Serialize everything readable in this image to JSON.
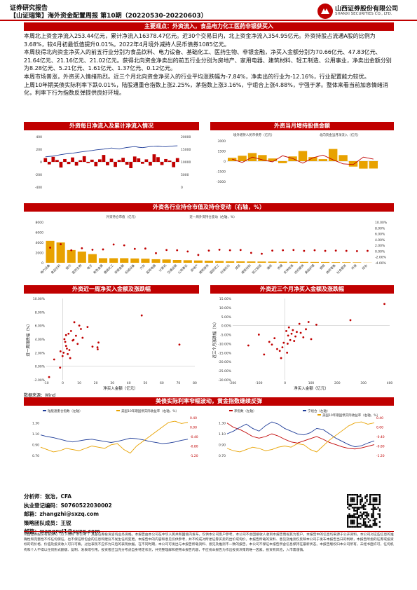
{
  "header": {
    "doc_type": "证券研究报告",
    "title": "【山证瑞策】海外资金配置周报 第10期（20220530-20220603）",
    "company_cn": "山西证券股份有限公司",
    "company_en": "SHANXI SECURITIES CO., LTD."
  },
  "sections": {
    "core_view": "主要观点：外资流入，食品电力化工医药非银获买入",
    "chart1_title": "外资每日净流入及累计净流入情况",
    "chart2_title": "外资当月增持股债金额",
    "chart3_title": "外资各行业持仓市值及持仓变动（右轴，%）",
    "chart4_title": "外资近一周净买入金额及涨跌幅",
    "chart5_title": "外资近三个月净买入金额及涨跌幅",
    "chart6_title": "美债实际利率窄幅波动，黄金指数继续反弹"
  },
  "paragraphs": [
    "本周北上资金净流入253.44亿元，累计净流入16378.47亿元。近30个交易日内，北上资金净流入354.95亿元。外资持股占流通A股的比例为3.68%，较4月初最低值提升0.01%。2022年4月境外减持人民币债券1085亿元。",
    "本周获得北向资金净买入的前五行业分别为食品饮料、电力设备、基础化工、医药生物、非银金融，净买入金额分别为70.66亿元、47.83亿元、21.64亿元、21.16亿元、21.02亿元。获得北向资金净卖出的前五行业分别为房地产、家用电器、建筑材料、轻工制造、公用事业，净卖出金额分别为8.28亿元、5.21亿元、1.61亿元、1.37亿元、0.12亿元。",
    "本周市场普涨，外资买入情绪热烈。近三个月北向资金净买入的行业平均涨跌幅为-7.84%，净卖出的行业为-12.16%，行业配置能力较优。",
    "上周10年期美债实际利率下跌0.01%，陆股通重仓指数上涨2.25%，茅指数上涨3.16%，宁组合上涨4.88%，宁强于茅。整体来看当前加息情绪消化，利率下行为指数反弹提供良好环境。"
  ],
  "chart_data": [
    {
      "type": "bar",
      "title": "外资每日净流入及累计净流入情况",
      "series": [
        {
          "name": "",
          "values": [
            60,
            -40,
            80,
            30,
            -90,
            45,
            -35,
            70,
            -60,
            25,
            90,
            -20,
            35,
            -70,
            40,
            110,
            -55,
            50,
            -80,
            30,
            65,
            -45,
            -100,
            85,
            55,
            -30,
            40,
            -60,
            120,
            75,
            -50,
            45,
            20,
            -85,
            60
          ]
        },
        {
          "name": "",
          "values": [
            12000,
            12150,
            12300,
            12600,
            12850,
            13100,
            13300,
            13450,
            13650,
            13900,
            14100,
            14300,
            14500,
            14750,
            14900,
            15050,
            15250,
            15500,
            15300,
            15100,
            15450,
            15700,
            15900,
            16050,
            15800,
            15650,
            15850,
            16100,
            16150,
            16250,
            16050,
            16000,
            16200,
            16300,
            16378
          ]
        }
      ],
      "ylim_left": [
        -400,
        400
      ],
      "ylim_right": [
        0,
        20000
      ]
    },
    {
      "type": "bar",
      "title": "外资当月增持股债金额",
      "series": [
        {
          "name": "境外增持人民币债券（亿元）",
          "values": [
            500,
            800,
            1200,
            900,
            400,
            -300,
            700,
            1500,
            600,
            300,
            1800,
            900,
            -800,
            -1100,
            -1085
          ]
        },
        {
          "name": "北向资金当月净流入（亿元）",
          "values": [
            300,
            -200,
            600,
            200,
            -100,
            800,
            400,
            -300,
            500,
            900,
            200,
            -400,
            -500,
            600,
            300
          ]
        }
      ],
      "ylim": [
        -3000,
        3000
      ]
    },
    {
      "type": "bar",
      "title": "外资各行业持仓市值及持仓变动（右轴，%）",
      "categories": [
        "电力设备",
        "食品饮料",
        "银行",
        "医药生物",
        "电子",
        "有色金属",
        "基础化工",
        "非银金融",
        "机械设备",
        "汽车",
        "家用电器",
        "计算机",
        "交通运输",
        "公用事业",
        "房地产",
        "建筑装饰",
        "国防军工",
        "石油石化",
        "煤炭",
        "建筑材料",
        "轻工制造",
        "通信",
        "传媒",
        "农林牧渔",
        "纺织服饰",
        "美容护理",
        "钢铁",
        "商贸零售",
        "社会服务",
        "环保",
        "综合"
      ],
      "series": [
        {
          "name": "外资持仓市值（亿元）",
          "values": [
            4300,
            4000,
            2500,
            2200,
            1700,
            900,
            900,
            900,
            850,
            800,
            700,
            650,
            550,
            500,
            450,
            400,
            350,
            300,
            280,
            260,
            240,
            230,
            200,
            190,
            170,
            160,
            150,
            120,
            110,
            90,
            30
          ]
        },
        {
          "name": "近一周外资持仓变动（右轴，%）",
          "values": [
            1.2,
            2.4,
            0.3,
            1.0,
            0.5,
            0.6,
            2.3,
            2.0,
            0.8,
            0.9,
            -0.7,
            0.4,
            0.3,
            -0.1,
            -1.3,
            0.2,
            0.5,
            0.3,
            0.4,
            -0.6,
            -0.9,
            0.2,
            0.3,
            0.4,
            0.1,
            0.3,
            0.1,
            0.2,
            0.1,
            0.0,
            0.1
          ]
        }
      ],
      "ylim": [
        0,
        8000
      ],
      "y2lim": [
        -4,
        10
      ]
    },
    {
      "type": "scatter",
      "title": "外资近一周净买入金额及涨跌幅",
      "xlabel": "净买入金额（亿元）",
      "ylabel": "近一周涨跌幅（%）",
      "x": [
        70.66,
        47.83,
        21.64,
        21.16,
        21.02,
        10,
        8,
        6,
        5,
        4,
        3,
        2,
        1,
        0.5,
        -0.12,
        -1.37,
        -1.61,
        -5.21,
        -8.28,
        12,
        15,
        9,
        7,
        3.5,
        2.5,
        1.5,
        18,
        11,
        6.5,
        4.5,
        2
      ],
      "y": [
        3.2,
        7.5,
        3.5,
        2.5,
        2.8,
        6.0,
        4.5,
        3.8,
        5.2,
        2.4,
        1.8,
        3.0,
        4.0,
        2.0,
        1.5,
        2.2,
        -0.2,
        1.0,
        -1.6,
        4.2,
        5.8,
        3.3,
        6.5,
        4.8,
        2.6,
        3.6,
        2.9,
        5.5,
        3.9,
        1.2,
        4.6
      ],
      "xlim": [
        -10,
        80
      ],
      "ylim": [
        -2,
        10
      ]
    },
    {
      "type": "scatter",
      "title": "外资近三个月净买入金额及涨跌幅",
      "xlabel": "净买入金额（亿元）",
      "ylabel": "近三个月涨跌幅（%）",
      "x": [
        380,
        250,
        120,
        80,
        60,
        40,
        20,
        10,
        5,
        -10,
        -20,
        -40,
        -60,
        -80,
        -100,
        -140,
        15,
        30,
        45,
        70,
        90,
        25,
        35,
        -30,
        -50,
        55,
        8,
        -5,
        12,
        -15,
        100
      ],
      "y": [
        12.0,
        3.0,
        0.5,
        -2.0,
        -4.0,
        -6.0,
        -8.0,
        -10.0,
        -3.0,
        -12.0,
        -14.0,
        -7.0,
        -9.0,
        -16.0,
        -5.0,
        -11.0,
        -1.0,
        -2.5,
        -3.5,
        -6.5,
        2.0,
        -4.5,
        -8.5,
        -13.0,
        -10.5,
        1.0,
        -15.0,
        -9.5,
        -5.5,
        -18.0,
        -7.5
      ],
      "xlim": [
        -200,
        400
      ],
      "ylim": [
        -30,
        15
      ]
    },
    {
      "type": "line",
      "title": "美债实际利率窄幅波动，黄金指数继续反弹",
      "series": [
        {
          "name": "陆股通重仓指数（左轴）",
          "values": [
            1.08,
            1.05,
            1.03,
            1.0,
            0.97,
            0.95,
            0.97,
            0.99,
            1.0,
            0.98,
            0.96,
            0.94,
            0.96,
            0.99,
            1.02,
            1.01,
            0.99,
            0.96,
            0.94,
            0.92,
            0.93,
            0.95,
            0.98,
            1.0
          ]
        },
        {
          "name": "美国10年期国债实际收益率（右轴，%）",
          "values": [
            -0.85,
            -0.95,
            -1.05,
            -1.0,
            -0.9,
            -0.95,
            -1.0,
            -0.9,
            -0.8,
            -0.85,
            -0.9,
            -0.75,
            -0.7,
            -0.95,
            -1.1,
            -0.8,
            -0.6,
            -0.4,
            -0.2,
            0.0,
            0.2,
            0.25,
            0.15,
            0.2
          ]
        },
        {
          "name": "茅指数（左轴）",
          "values": [
            1.3,
            1.22,
            1.18,
            1.12,
            1.05,
            1.02,
            1.05,
            1.1,
            1.06,
            1.0,
            0.95,
            0.93,
            0.97,
            1.01,
            1.05,
            1.0,
            0.94,
            0.9,
            0.86,
            0.83,
            0.82,
            0.84,
            0.87,
            0.9
          ]
        },
        {
          "name": "宁组合（左轴）",
          "values": [
            1.1,
            1.15,
            1.22,
            1.28,
            1.2,
            1.15,
            1.25,
            1.32,
            1.28,
            1.2,
            1.15,
            1.1,
            1.08,
            1.12,
            1.2,
            1.18,
            1.1,
            1.02,
            0.96,
            0.9,
            0.86,
            0.88,
            0.93,
            0.97
          ]
        },
        {
          "name": "美国10年期国债实际收益率（右轴，%）",
          "values": [
            -0.9,
            -1.0,
            -1.05,
            -0.95,
            -0.85,
            -0.9,
            -1.0,
            -0.95,
            -0.85,
            -0.8,
            -0.85,
            -0.7,
            -0.75,
            -0.95,
            -1.05,
            -0.8,
            -0.55,
            -0.35,
            -0.15,
            0.05,
            0.18,
            0.22,
            0.12,
            0.18
          ]
        }
      ]
    }
  ],
  "chart_text": {
    "c2_legend1": "境外增持人民币债券（亿元）",
    "c2_legend2": "北向资金当月净流入（亿元）",
    "c3_legend1": "外资持仓市值（亿元）",
    "c3_legend2": "近一周外资持仓变动（右轴，%）",
    "c4_xlabel": "净买入金额（亿元）",
    "c4_ylabel": "近一周涨跌幅（%）",
    "c5_xlabel": "净买入金额（亿元）",
    "c5_ylabel": "近三个月涨跌幅（%）",
    "c6_legend1": "陆股通重仓指数（左轴）",
    "c6_legend2": "美国10年期国债实际收益率（右轴，%）",
    "c6_legend3": "茅指数（左轴）",
    "c6_legend4": "宁组合（左轴）",
    "c6_legend5": "美国10年期国债实际收益率（右轴，%）",
    "source": "数据来源：Wind"
  },
  "footer": {
    "analyst": "分析师：张治，CFA",
    "license": "执业登记编码：S0760522030002",
    "email1": "邮箱：zhangzhi@sxzq.com",
    "team": "策略团队成员：王锐",
    "email2": "邮箱：wangrui1@sxzq.com"
  },
  "disclaimer": "山西证券股份有限公司（以下简称“本公司”）具备证券投资咨询业务资格。本报告由本公司在中华人民共和国境内发布，仅供本公司客户参考。本公司不会因接收人收到本报告而视其为客户。本报告中的信息均来源于公开资料，本公司对这些信息的准确性和完整性不作任何保证，也不保证所包含的信息和建议不发生任何变更。本报告中的内容和意见仅供参考，并不构成对所述证券买卖的出价或询价。本报告所载的资料、意见及推测仅反映本公司于发布本报告当日的判断，本报告所指的证券或投资标的的价格、价值及投资收入可升可跌。过往表现不应作为日后的表现依据。在不同时期，本公司可发出与本报告所载资料、意见及推测不一致的报告。本公司不保证本报告所含信息保持在最新状态。本报告版权归本公司所有，未经书面许可，任何机构和个人不得以任何形式翻版、复制、发表或引用。投资者应当充分考虑自身特定状况，并完整理解和使用本报告内容，不应视本报告为作出投资决策的唯一因素。投资有风险，入市需谨慎。"
}
